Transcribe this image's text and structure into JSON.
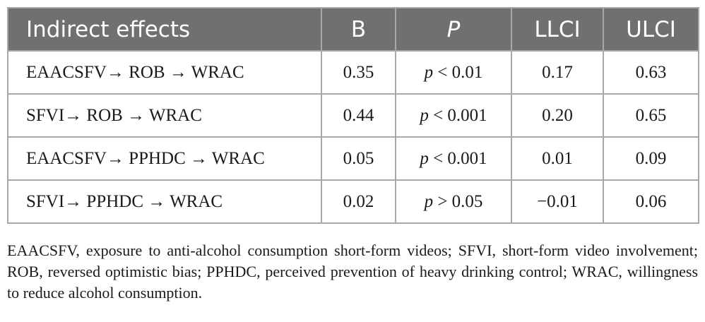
{
  "table": {
    "headers": {
      "effect": "Indirect effects",
      "b": "B",
      "p": "P",
      "llci": "LLCI",
      "ulci": "ULCI"
    },
    "rows": [
      {
        "effect": "EAACSFV→ ROB → WRAC",
        "b": "0.35",
        "p_sym": "p",
        "p_rest": " < 0.01",
        "llci": "0.17",
        "ulci": "0.63"
      },
      {
        "effect": "SFVI→ ROB → WRAC",
        "b": "0.44",
        "p_sym": "p",
        "p_rest": " < 0.001",
        "llci": "0.20",
        "ulci": "0.65"
      },
      {
        "effect": "EAACSFV→ PPHDC → WRAC",
        "b": "0.05",
        "p_sym": "p",
        "p_rest": " < 0.001",
        "llci": "0.01",
        "ulci": "0.09"
      },
      {
        "effect": "SFVI→ PPHDC → WRAC",
        "b": "0.02",
        "p_sym": "p",
        "p_rest": " > 0.05",
        "llci": "−0.01",
        "ulci": "0.06"
      }
    ]
  },
  "footnote": "EAACSFV, exposure to anti-alcohol consumption short-form videos; SFVI, short-form video involvement; ROB, reversed optimistic bias; PPHDC, perceived prevention of heavy drinking control; WRAC, willingness to reduce alcohol consumption."
}
